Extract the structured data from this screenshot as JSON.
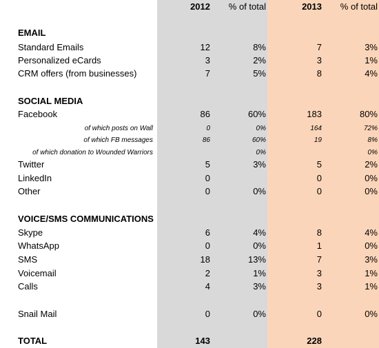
{
  "table": {
    "header": [
      "2012",
      "% of total",
      "2013",
      "% of total"
    ],
    "rows": [
      {
        "kind": "section",
        "label": "EMAIL"
      },
      {
        "kind": "item",
        "label": "Standard Emails",
        "cells": [
          12,
          "8%",
          7,
          "3%"
        ]
      },
      {
        "kind": "item",
        "label": "Personalized eCards",
        "cells": [
          3,
          "2%",
          3,
          "1%"
        ]
      },
      {
        "kind": "item",
        "label": "CRM offers (from businesses)",
        "cells": [
          7,
          "5%",
          8,
          "4%"
        ]
      },
      {
        "kind": "section",
        "label": "SOCIAL MEDIA"
      },
      {
        "kind": "item",
        "label": "Facebook",
        "cells": [
          86,
          "60%",
          183,
          "80%"
        ]
      },
      {
        "kind": "sub",
        "label": "of which posts on Wall",
        "cells": [
          0,
          "0%",
          164,
          "72%"
        ]
      },
      {
        "kind": "sub",
        "label": "of which FB messages",
        "cells": [
          86,
          "60%",
          19,
          "8%"
        ]
      },
      {
        "kind": "sub",
        "label": "of which donation to Wounded Warriors",
        "cells": [
          null,
          "0%",
          null,
          "0%"
        ]
      },
      {
        "kind": "item",
        "label": "Twitter",
        "cells": [
          5,
          "3%",
          5,
          "2%"
        ]
      },
      {
        "kind": "item",
        "label": "LinkedIn",
        "cells": [
          0,
          null,
          0,
          "0%"
        ]
      },
      {
        "kind": "item",
        "label": "Other",
        "cells": [
          0,
          "0%",
          0,
          "0%"
        ]
      },
      {
        "kind": "section",
        "label": "VOICE/SMS COMMUNICATIONS"
      },
      {
        "kind": "item",
        "label": "Skype",
        "cells": [
          6,
          "4%",
          8,
          "4%"
        ]
      },
      {
        "kind": "item",
        "label": "WhatsApp",
        "cells": [
          0,
          "0%",
          1,
          "0%"
        ]
      },
      {
        "kind": "item",
        "label": "SMS",
        "cells": [
          18,
          "13%",
          7,
          "3%"
        ]
      },
      {
        "kind": "item",
        "label": "Voicemail",
        "cells": [
          2,
          "1%",
          3,
          "1%"
        ]
      },
      {
        "kind": "item",
        "label": "Calls",
        "cells": [
          4,
          "3%",
          3,
          "1%"
        ]
      },
      {
        "kind": "item",
        "label": "Snail Mail",
        "cells": [
          0,
          "0%",
          0,
          "0%"
        ]
      },
      {
        "kind": "total",
        "label": "TOTAL",
        "cells": [
          143,
          null,
          228,
          null
        ]
      }
    ]
  }
}
